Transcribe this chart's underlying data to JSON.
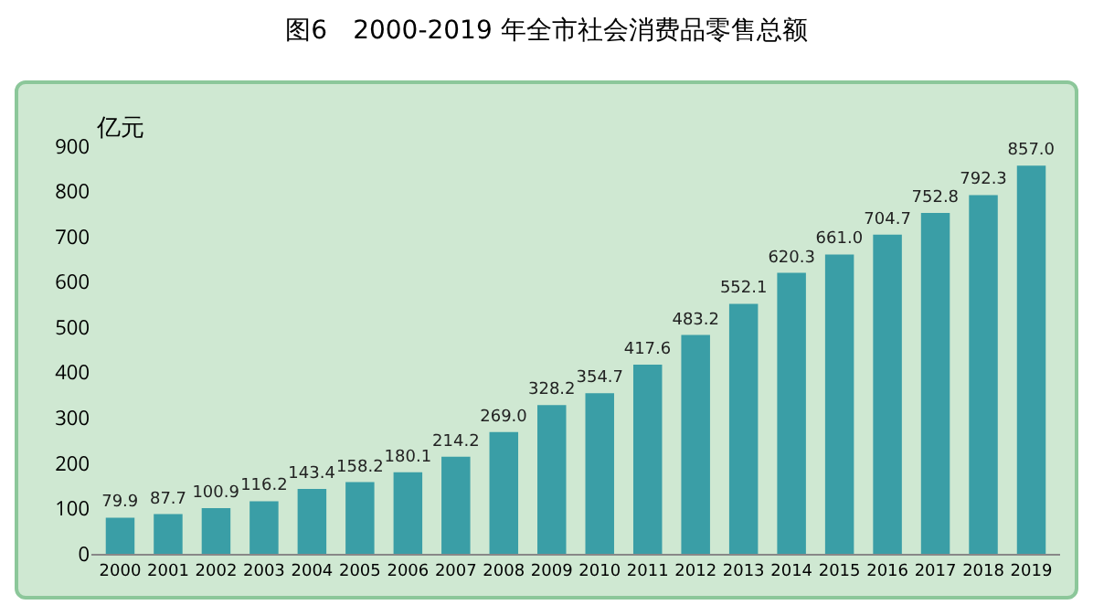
{
  "chart_data": {
    "type": "bar",
    "title": "图6　2000-2019 年全市社会消费品零售总额",
    "ylabel": "亿元",
    "categories": [
      "2000",
      "2001",
      "2002",
      "2003",
      "2004",
      "2005",
      "2006",
      "2007",
      "2008",
      "2009",
      "2010",
      "2011",
      "2012",
      "2013",
      "2014",
      "2015",
      "2016",
      "2017",
      "2018",
      "2019"
    ],
    "values": [
      79.9,
      87.7,
      100.9,
      116.2,
      143.4,
      158.2,
      180.1,
      214.2,
      269.0,
      328.2,
      354.7,
      417.6,
      483.2,
      552.1,
      620.3,
      661.0,
      704.7,
      752.8,
      792.3,
      857.0
    ],
    "value_labels": [
      "79.9",
      "87.7",
      "100.9",
      "116.2",
      "143.4",
      "158.2",
      "180.1",
      "214.2",
      "269.0",
      "328.2",
      "354.7",
      "417.6",
      "483.2",
      "552.1",
      "620.3",
      "661.0",
      "704.7",
      "752.8",
      "792.3",
      "857.0"
    ],
    "color": "#3a9ea6",
    "ylim": [
      0,
      900
    ],
    "yticks": [
      0,
      100,
      200,
      300,
      400,
      500,
      600,
      700,
      800,
      900
    ],
    "grid": false,
    "legend": false
  }
}
